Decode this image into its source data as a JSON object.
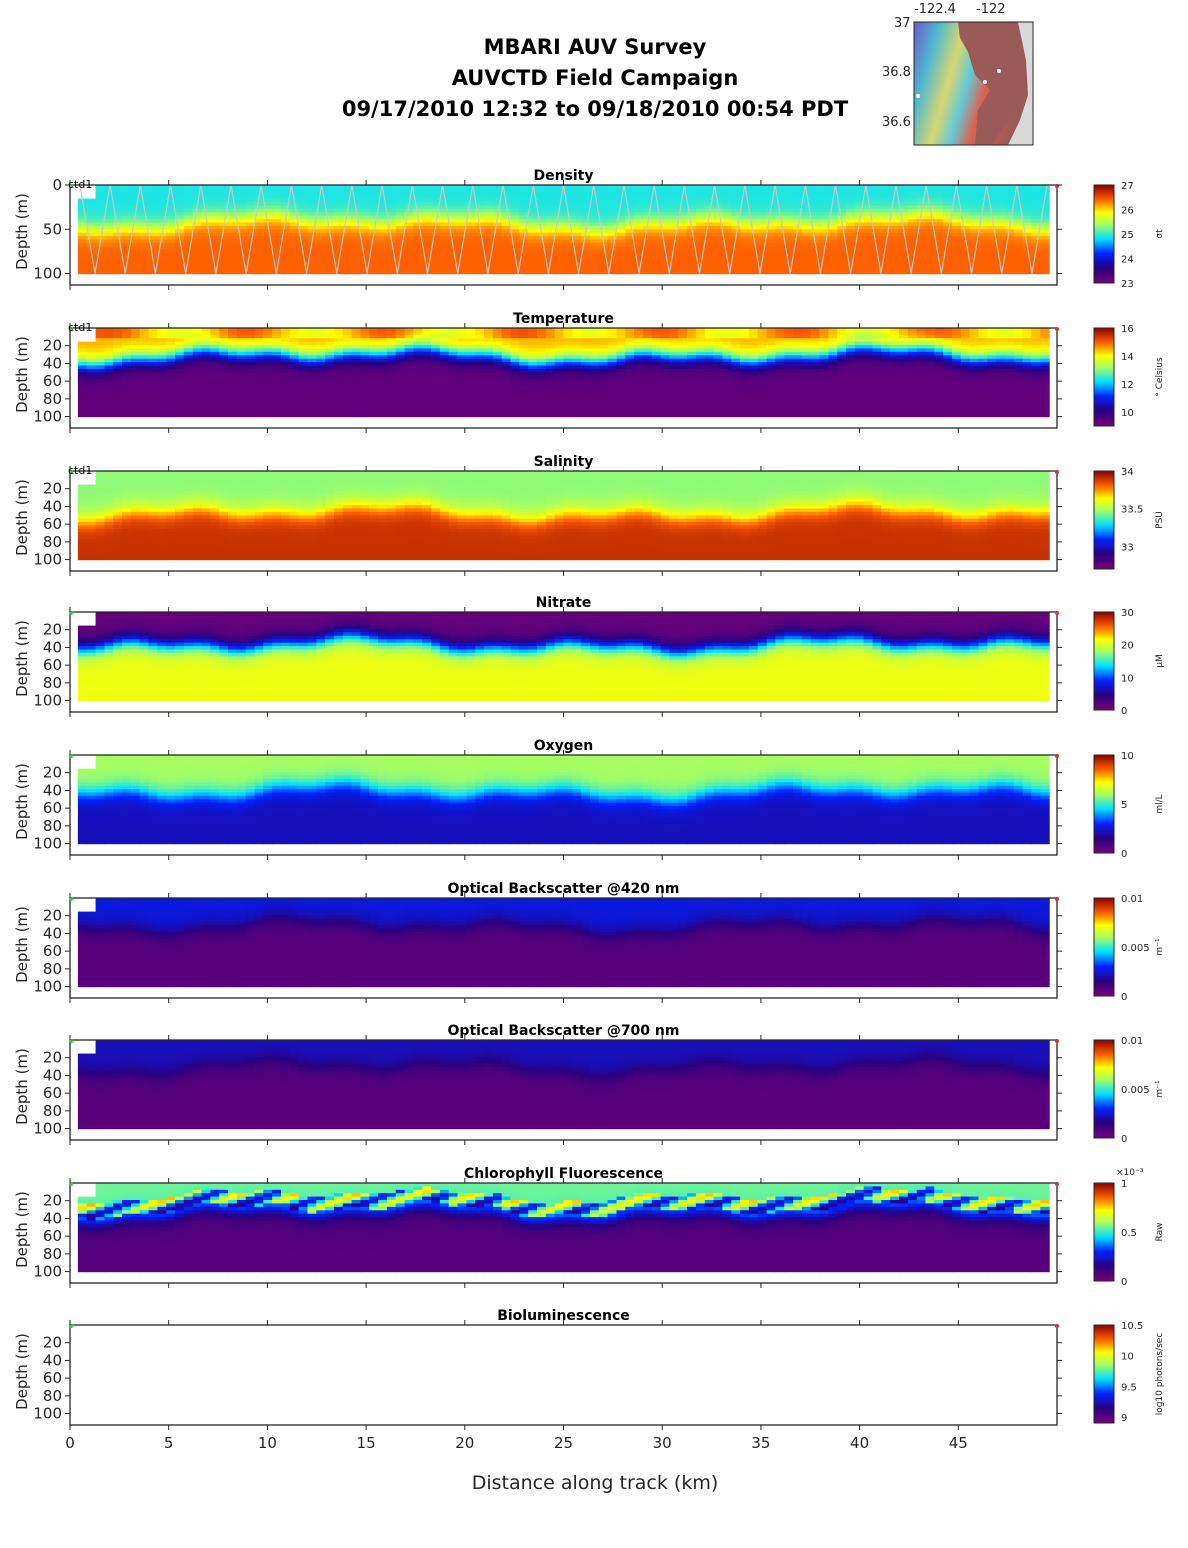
{
  "header": {
    "title_line1": "MBARI AUV Survey",
    "title_line2": "AUVCTD Field Campaign",
    "title_line3": "09/17/2010 12:32  to 09/18/2010 00:54 PDT"
  },
  "minimap": {
    "lon_ticks": [
      "-122.4",
      "-122"
    ],
    "lat_ticks": [
      "37",
      "36.8",
      "36.6"
    ],
    "land_color": "#9a5a58",
    "background_color": "#d9d9d9"
  },
  "chart_data": {
    "type": "heatmap",
    "xlabel": "Distance along track (km)",
    "xlim": [
      0,
      50
    ],
    "x_ticks": [
      0,
      5,
      10,
      15,
      20,
      25,
      30,
      35,
      40,
      45
    ],
    "ylabel": "Depth (m)",
    "ylim": [
      0,
      105
    ],
    "platform_label": "ctd1",
    "colormap": "jet-like (purple-blue-cyan-yellow-red)",
    "panels": [
      {
        "title": "Density",
        "y_ticks": [
          0,
          50,
          100
        ],
        "cbar_ticks": [
          "23",
          "24",
          "25",
          "26",
          "27"
        ],
        "cbar_range": [
          23,
          27
        ],
        "units": "σt",
        "surface_value": 24.9,
        "deep_value": 26.4,
        "cline_depth": 40,
        "show_track": true,
        "show_label": true
      },
      {
        "title": "Temperature",
        "y_ticks": [
          20,
          40,
          60,
          80,
          100
        ],
        "cbar_ticks": [
          "10",
          "12",
          "14",
          "16"
        ],
        "cbar_range": [
          9,
          16
        ],
        "units": "° Celsius",
        "surface_value": 14.5,
        "deep_value": 9.3,
        "cline_depth": 30,
        "show_track": false,
        "show_label": true
      },
      {
        "title": "Salinity",
        "y_ticks": [
          20,
          40,
          60,
          80,
          100
        ],
        "cbar_ticks": [
          "33",
          "33.5",
          "34"
        ],
        "cbar_range": [
          32.7,
          34
        ],
        "units": "PSU",
        "surface_value": 33.45,
        "deep_value": 33.9,
        "cline_depth": 45,
        "show_track": false,
        "show_label": true
      },
      {
        "title": "Nitrate",
        "y_ticks": [
          20,
          40,
          60,
          80,
          100
        ],
        "cbar_ticks": [
          "0",
          "10",
          "20",
          "30"
        ],
        "cbar_range": [
          0,
          30
        ],
        "units": "μM",
        "surface_value": 1,
        "deep_value": 21,
        "cline_depth": 35,
        "show_track": false,
        "show_label": false
      },
      {
        "title": "Oxygen",
        "y_ticks": [
          20,
          40,
          60,
          80,
          100
        ],
        "cbar_ticks": [
          "0",
          "5",
          "10"
        ],
        "cbar_range": [
          0,
          10
        ],
        "units": "ml/L",
        "surface_value": 6.0,
        "deep_value": 2.2,
        "cline_depth": 40,
        "show_track": false,
        "show_label": false
      },
      {
        "title": "Optical Backscatter @420 nm",
        "y_ticks": [
          20,
          40,
          60,
          80,
          100
        ],
        "cbar_ticks": [
          "0",
          "0.005",
          "0.01"
        ],
        "cbar_range": [
          0,
          0.01
        ],
        "units": "m⁻¹",
        "surface_value": 0.0026,
        "deep_value": 0.0006,
        "cline_depth": 30,
        "show_track": false,
        "show_label": false
      },
      {
        "title": "Optical Backscatter @700 nm",
        "y_ticks": [
          20,
          40,
          60,
          80,
          100
        ],
        "cbar_ticks": [
          "0",
          "0.005",
          "0.01"
        ],
        "cbar_range": [
          0,
          0.01
        ],
        "units": "m⁻¹",
        "surface_value": 0.0022,
        "deep_value": 0.0006,
        "cline_depth": 30,
        "show_track": false,
        "show_label": false
      },
      {
        "title": "Chlorophyll Fluorescence",
        "y_ticks": [
          20,
          40,
          60,
          80,
          100
        ],
        "cbar_ticks": [
          "0",
          "0.5",
          "1"
        ],
        "cbar_exponent": "×10⁻³",
        "cbar_range": [
          0,
          1
        ],
        "units": "Raw",
        "surface_value": 0.55,
        "deep_value": 0.07,
        "cline_depth": 30,
        "show_track": false,
        "show_label": false
      },
      {
        "title": "Bioluminescence",
        "y_ticks": [
          20,
          40,
          60,
          80,
          100
        ],
        "cbar_ticks": [
          "9",
          "9.5",
          "10",
          "10.5"
        ],
        "cbar_range": [
          8.9,
          10.5
        ],
        "units": "log10 photons/sec",
        "surface_value": null,
        "deep_value": null,
        "cline_depth": null,
        "show_track": false,
        "show_label": false
      }
    ]
  }
}
